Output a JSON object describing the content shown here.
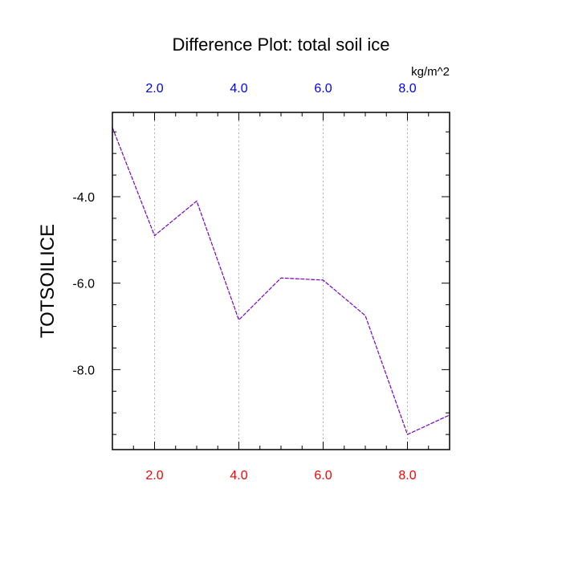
{
  "chart_data": {
    "type": "line",
    "title": "Difference Plot: total soil ice",
    "units": "kg/m^2",
    "ylabel": "TOTSOILICE",
    "xlim": [
      1,
      9
    ],
    "ylim": [
      -9.85,
      -2.05
    ],
    "x_ticks": [
      2,
      4,
      6,
      8
    ],
    "x_tick_labels": [
      "2.0",
      "4.0",
      "6.0",
      "8.0"
    ],
    "y_ticks": [
      -4,
      -6,
      -8
    ],
    "y_tick_labels": [
      "-4.0",
      "-6.0",
      "-8.0"
    ],
    "grid": "vertical dotted",
    "series": [
      {
        "x": [
          1,
          2,
          3,
          4,
          5,
          6,
          7,
          8,
          9
        ],
        "y": [
          -2.4,
          -4.9,
          -4.1,
          -6.85,
          -5.88,
          -5.93,
          -6.75,
          -9.5,
          -9.05
        ]
      }
    ]
  },
  "colors": {
    "series_line": "#7700cc",
    "bottom_tick_labels": "#ff0000",
    "top_tick_labels": "#0000ff",
    "grid": "#b0b0b0",
    "frame": "#000000"
  }
}
